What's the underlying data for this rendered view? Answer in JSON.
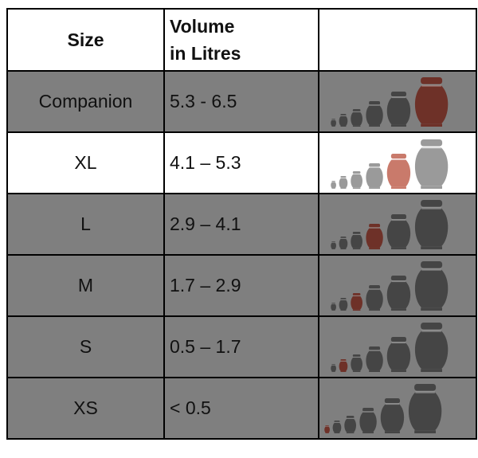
{
  "header": {
    "size": "Size",
    "volume": [
      "Volume",
      "in Litres"
    ]
  },
  "rows": [
    [
      "Companion",
      "5.3 - 6.5"
    ],
    [
      "XL",
      "4.1 – 5.3"
    ],
    [
      "L",
      "2.9 – 4.1"
    ],
    [
      "M",
      "1.7 – 2.9"
    ],
    [
      "S",
      "0.5 – 1.7"
    ],
    [
      "XS",
      "< 0.5"
    ]
  ]
}
